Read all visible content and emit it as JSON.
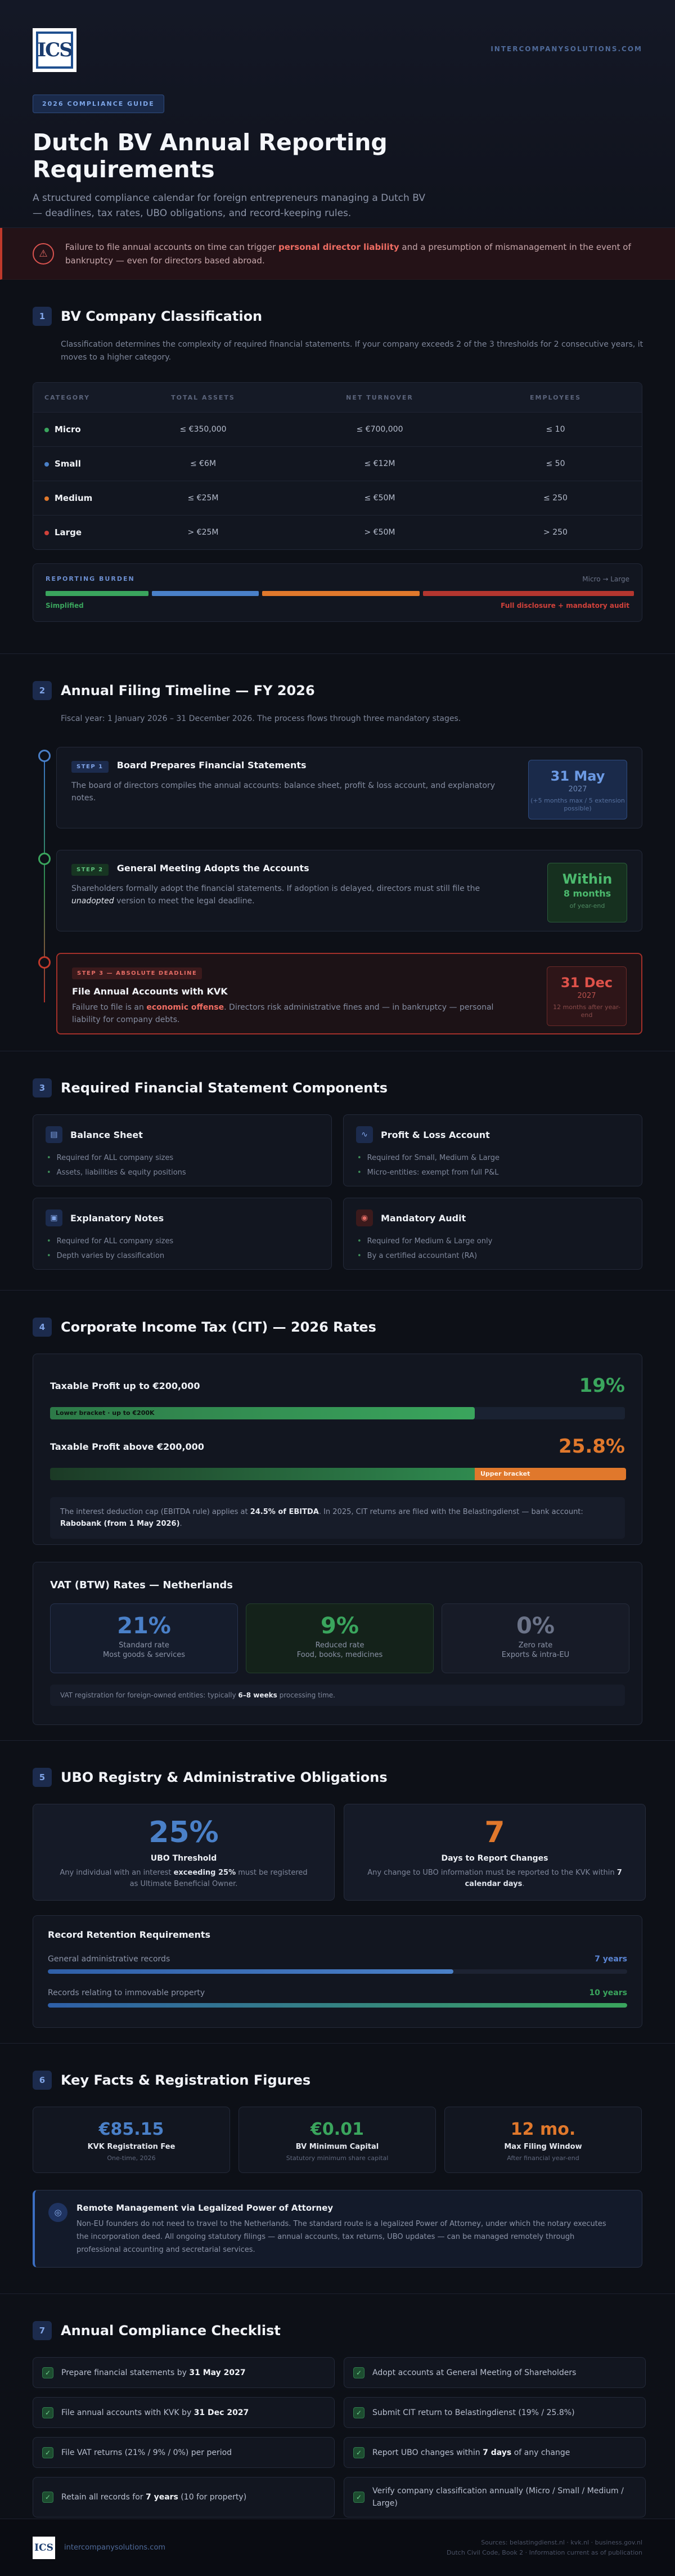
{
  "header": {
    "logo_text": "ICS",
    "site_url": "INTERCOMPANYSOLUTIONS.COM",
    "badge": "2026 COMPLIANCE GUIDE",
    "title": "Dutch BV Annual Reporting Requirements",
    "subtitle": "A structured compliance calendar for foreign entrepreneurs managing a Dutch BV — deadlines, tax rates, UBO obligations, and record-keeping rules."
  },
  "warning": {
    "pre": "Failure to file annual accounts on time can trigger ",
    "highlight": "personal director liability",
    "post": " and a presumption of mismanagement in the event of bankruptcy — even for directors based abroad."
  },
  "section1": {
    "num": "1",
    "title": "BV Company Classification",
    "intro": "Classification determines the complexity of required financial statements. If your company exceeds 2 of the 3 thresholds for 2 consecutive years, it moves to a higher category.",
    "table_headers": [
      "CATEGORY",
      "TOTAL ASSETS",
      "NET TURNOVER",
      "EMPLOYEES"
    ],
    "rows": [
      {
        "cat": "Micro",
        "assets": "≤ €350,000",
        "turnover": "≤ €700,000",
        "employees": "≤ 10",
        "color": "#3aa55d"
      },
      {
        "cat": "Small",
        "assets": "≤ €6M",
        "turnover": "≤ €12M",
        "employees": "≤ 50",
        "color": "#4a80c8"
      },
      {
        "cat": "Medium",
        "assets": "≤ €25M",
        "turnover": "≤ €50M",
        "employees": "≤ 250",
        "color": "#e0782c"
      },
      {
        "cat": "Large",
        "assets": "> €25M",
        "turnover": "> €50M",
        "employees": "> 250",
        "color": "#d0413a"
      }
    ],
    "burden_label": "REPORTING BURDEN",
    "burden_range": "Micro → Large",
    "burden_left": "Simplified",
    "burden_right": "Full disclosure + mandatory audit"
  },
  "section2": {
    "num": "2",
    "title": "Annual Filing Timeline — FY 2026",
    "intro": "Fiscal year: 1 January 2026 – 31 December 2026. The process flows through three mandatory stages.",
    "steps": [
      {
        "step": "STEP 1",
        "title": "Board Prepares Financial Statements",
        "text": "The board of directors compiles the annual accounts: balance sheet, profit & loss account, and explanatory notes.",
        "date_big": "31 May",
        "date_year": "2027",
        "date_small": "(+5 months max / 5 extension possible)"
      },
      {
        "step": "STEP 2",
        "title": "General Meeting Adopts the Accounts",
        "text_pre": "Shareholders formally adopt the financial statements. If adoption is delayed, directors must still file the ",
        "text_em": "unadopted",
        "text_post": " version to meet the legal deadline.",
        "date_big": "Within",
        "date_year": "8 months",
        "date_small": "of year-end"
      },
      {
        "step": "STEP 3 — ABSOLUTE DEADLINE",
        "title": "File Annual Accounts with KVK",
        "text_pre": "Failure to file is an ",
        "text_em": "economic offense",
        "text_post": ". Directors risk administrative fines and — in bankruptcy — personal liability for company debts.",
        "date_big": "31 Dec",
        "date_year": "2027",
        "date_small": "12 months after year-end"
      }
    ]
  },
  "section3": {
    "num": "3",
    "title": "Required Financial Statement Components",
    "cards": [
      {
        "title": "Balance Sheet",
        "icon": "▤",
        "items": [
          "Required for ALL company sizes",
          "Assets, liabilities & equity positions"
        ]
      },
      {
        "title": "Profit & Loss Account",
        "icon": "∿",
        "items": [
          "Required for Small, Medium & Large",
          "Micro-entities: exempt from full P&L"
        ]
      },
      {
        "title": "Explanatory Notes",
        "icon": "▣",
        "items": [
          "Required for ALL company sizes",
          "Depth varies by classification"
        ]
      },
      {
        "title": "Mandatory Audit",
        "icon": "◉",
        "items": [
          "Required for Medium & Large only",
          "By a certified accountant (RA)"
        ]
      }
    ]
  },
  "section4": {
    "num": "4",
    "title": "Corporate Income Tax (CIT) — 2026 Rates",
    "low_label": "Taxable Profit up to €200,000",
    "low_rate": "19%",
    "low_bar": "Lower bracket · up to €200K",
    "high_label": "Taxable Profit above €200,000",
    "high_rate": "25.8%",
    "high_bar": "Upper bracket",
    "note_pre": "The interest deduction cap (EBITDA rule) applies at ",
    "note_b1": "24.5% of EBITDA",
    "note_mid": ". In 2025, CIT returns are filed with the Belastingdienst — bank account: ",
    "note_b2": "Rabobank (from 1 May 2026)",
    "note_post": ".",
    "vat_title": "VAT (BTW) Rates — Netherlands",
    "vat": [
      {
        "pct": "21%",
        "label": "Standard rate",
        "sub": "Most goods & services",
        "color": "#4a80c8"
      },
      {
        "pct": "9%",
        "label": "Reduced rate",
        "sub": "Food, books, medicines",
        "color": "#3aa55d"
      },
      {
        "pct": "0%",
        "label": "Zero rate",
        "sub": "Exports & intra-EU",
        "color": "#6b7388"
      }
    ],
    "vat_note_pre": "VAT registration for foreign-owned entities: typically ",
    "vat_note_b": "6–8 weeks",
    "vat_note_post": " processing time."
  },
  "section5": {
    "num": "5",
    "title": "UBO Registry & Administrative Obligations",
    "card1_big": "25%",
    "card1_title": "UBO Threshold",
    "card1_pre": "Any individual with an interest ",
    "card1_b": "exceeding 25%",
    "card1_post": " must be registered as Ultimate Beneficial Owner.",
    "card2_big": "7",
    "card2_title": "Days to Report Changes",
    "card2_pre": "Any change to UBO information must be reported to the KVK within ",
    "card2_b": "7 calendar days",
    "card2_post": ".",
    "ret_title": "Record Retention Requirements",
    "ret_rows": [
      {
        "label": "General administrative records",
        "value": "7 years",
        "fill": 0.7,
        "color": "#4a80c8"
      },
      {
        "label": "Records relating to immovable property",
        "value": "10 years",
        "fill": 1.0,
        "color": "#3aa55d"
      }
    ]
  },
  "section6": {
    "num": "6",
    "title": "Key Facts & Registration Figures",
    "facts": [
      {
        "big": "€85.15",
        "title": "KVK Registration Fee",
        "sub": "One-time, 2026",
        "color": "#4a80c8"
      },
      {
        "big": "€0.01",
        "title": "BV Minimum Capital",
        "sub": "Statutory minimum share capital",
        "color": "#3aa55d"
      },
      {
        "big": "12 mo.",
        "title": "Max Filing Window",
        "sub": "After financial year-end",
        "color": "#e0782c"
      }
    ],
    "remote_title": "Remote Management via Legalized Power of Attorney",
    "remote_text": "Non-EU founders do not need to travel to the Netherlands. The standard route is a legalized Power of Attorney, under which the notary executes the incorporation deed. All ongoing statutory filings — annual accounts, tax returns, UBO updates — can be managed remotely through professional accounting and secretarial services."
  },
  "section7": {
    "num": "7",
    "title": "Annual Compliance Checklist",
    "items": [
      {
        "pre": "Prepare financial statements by ",
        "b": "31 May 2027",
        "post": ""
      },
      {
        "pre": "Adopt accounts at General Meeting of Shareholders",
        "b": "",
        "post": ""
      },
      {
        "pre": "File annual accounts with KVK by ",
        "b": "31 Dec 2027",
        "post": ""
      },
      {
        "pre": "Submit CIT return to Belastingdienst (19% / 25.8%)",
        "b": "",
        "post": ""
      },
      {
        "pre": "File VAT returns (21% / 9% / 0%) per period",
        "b": "",
        "post": ""
      },
      {
        "pre": "Report UBO changes within ",
        "b": "7 days",
        "post": " of any change"
      },
      {
        "pre": "Retain all records for ",
        "b": "7 years",
        "post": " (10 for property)"
      },
      {
        "pre": "Verify company classification annually (Micro / Small / Medium / Large)",
        "b": "",
        "post": ""
      }
    ]
  },
  "footer": {
    "logo_text": "ICS",
    "url": "intercompanysolutions.com",
    "sources": "Sources: belastingdienst.nl · kvk.nl · business.gov.nl",
    "legal": "Dutch Civil Code, Book 2 · Information current as of publication"
  },
  "colors": {
    "accent": "#4a80c8",
    "green": "#3aa55d",
    "orange": "#e0782c",
    "red": "#d0413a"
  }
}
